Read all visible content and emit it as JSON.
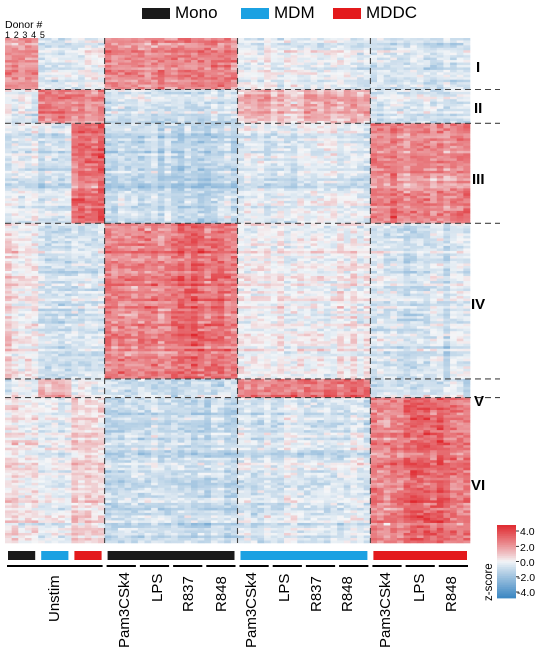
{
  "legend": {
    "items": [
      {
        "label": "Mono",
        "color": "#1a1a1a"
      },
      {
        "label": "MDM",
        "color": "#1ba1e2"
      },
      {
        "label": "MDDC",
        "color": "#e31a1c"
      }
    ]
  },
  "donor": {
    "title": "Donor #",
    "numbers": "1 2 3 4 5"
  },
  "colorbar": {
    "title": "z-score",
    "ticks": [
      "4.0",
      "2.0",
      "0.0",
      "-2.0",
      "-4.0"
    ]
  },
  "chart_data": {
    "type": "heatmap",
    "value_range": [
      -4,
      4
    ],
    "colormap": {
      "low": "#3b86c2",
      "mid": "#f4f6f8",
      "high": "#e0292f"
    },
    "column_groups": [
      {
        "cell_type": "Mono",
        "cell_type_index": 0,
        "condition": "Unstim"
      },
      {
        "cell_type": "MDM",
        "cell_type_index": 1,
        "condition": "Unstim"
      },
      {
        "cell_type": "MDDC",
        "cell_type_index": 2,
        "condition": "Unstim"
      },
      {
        "cell_type": "Mono",
        "cell_type_index": 0,
        "condition": "Pam3CSk4"
      },
      {
        "cell_type": "Mono",
        "cell_type_index": 0,
        "condition": "LPS"
      },
      {
        "cell_type": "Mono",
        "cell_type_index": 0,
        "condition": "R837"
      },
      {
        "cell_type": "Mono",
        "cell_type_index": 0,
        "condition": "R848"
      },
      {
        "cell_type": "MDM",
        "cell_type_index": 1,
        "condition": "Pam3CSk4"
      },
      {
        "cell_type": "MDM",
        "cell_type_index": 1,
        "condition": "LPS"
      },
      {
        "cell_type": "MDM",
        "cell_type_index": 1,
        "condition": "R837"
      },
      {
        "cell_type": "MDM",
        "cell_type_index": 1,
        "condition": "R848"
      },
      {
        "cell_type": "MDDC",
        "cell_type_index": 2,
        "condition": "Pam3CSk4"
      },
      {
        "cell_type": "MDDC",
        "cell_type_index": 2,
        "condition": "LPS"
      },
      {
        "cell_type": "MDDC",
        "cell_type_index": 2,
        "condition": "R848"
      }
    ],
    "donors_per_group": 5,
    "clusters": [
      {
        "label": "I",
        "row_share": 0.102,
        "group_means": [
          1.6,
          -0.5,
          -0.2,
          2.0,
          2.0,
          2.0,
          2.0,
          -0.2,
          -0.2,
          -0.2,
          -0.2,
          -0.6,
          -0.6,
          -0.6
        ]
      },
      {
        "label": "II",
        "row_share": 0.067,
        "group_means": [
          -0.4,
          2.2,
          1.9,
          -0.6,
          -0.6,
          -0.6,
          -0.6,
          1.3,
          1.1,
          1.5,
          1.3,
          -0.5,
          -0.5,
          -0.5
        ]
      },
      {
        "label": "III",
        "row_share": 0.198,
        "group_means": [
          -0.4,
          -0.6,
          2.4,
          -1.0,
          -1.0,
          -1.0,
          -1.0,
          -0.4,
          -0.4,
          -0.4,
          -0.4,
          2.0,
          1.9,
          1.8
        ]
      },
      {
        "label": "IV",
        "row_share": 0.308,
        "group_means": [
          0.5,
          -0.7,
          -0.5,
          2.1,
          2.3,
          2.6,
          2.5,
          0.2,
          0.2,
          0.1,
          0.2,
          -0.5,
          -0.5,
          -0.5
        ]
      },
      {
        "label": "V",
        "row_share": 0.037,
        "group_means": [
          -0.4,
          0.9,
          -0.2,
          -0.8,
          -0.8,
          -0.8,
          -0.8,
          2.2,
          2.2,
          2.3,
          2.4,
          -0.6,
          -0.6,
          -0.6
        ]
      },
      {
        "label": "VI",
        "row_share": 0.288,
        "group_means": [
          0.5,
          -0.2,
          0.7,
          -0.8,
          -0.8,
          -0.8,
          -0.8,
          -0.5,
          -0.5,
          -0.5,
          -0.5,
          2.3,
          2.8,
          2.6
        ]
      }
    ],
    "condition_labels": [
      "Unstim",
      "Pam3CSk4",
      "LPS",
      "R837",
      "R848",
      "Pam3CSk4",
      "LPS",
      "R837",
      "R848",
      "Pam3CSk4",
      "LPS",
      "R848"
    ]
  }
}
